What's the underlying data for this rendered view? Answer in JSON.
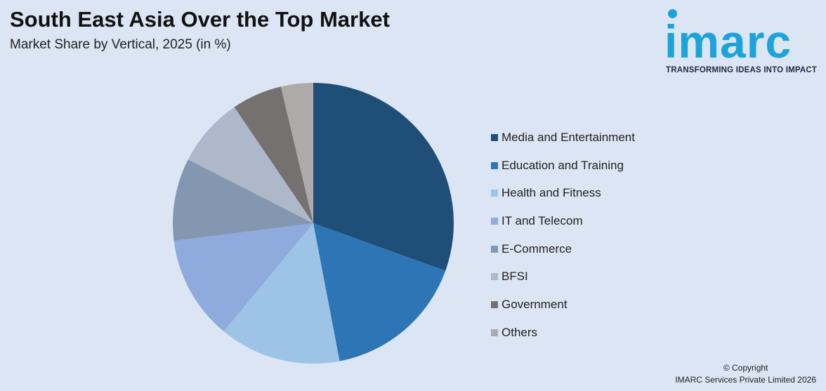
{
  "header": {
    "title": "South East Asia Over the Top Market",
    "subtitle": "Market Share by Vertical, 2025 (in %)"
  },
  "logo": {
    "word": "imarc",
    "tagline": "TRANSFORMING IDEAS INTO IMPACT"
  },
  "footer": {
    "copyright": "© Copyright",
    "company": "IMARC Services Private Limited 2026"
  },
  "chart_data": {
    "type": "pie",
    "title": "South East Asia Over the Top Market",
    "subtitle": "Market Share by Vertical, 2025 (in %)",
    "legend_position": "right",
    "categories": [
      "Media and Entertainment",
      "Education and Training",
      "Health and Fitness",
      "IT and Telecom",
      "E-Commerce",
      "BFSI",
      "Government",
      "Others"
    ],
    "values": [
      30.5,
      16.5,
      14.0,
      12.0,
      9.5,
      8.0,
      5.8,
      3.7
    ],
    "colors": [
      "#1f4e79",
      "#2e75b6",
      "#9dc3e6",
      "#8faadc",
      "#8497b0",
      "#adb9ca",
      "#767171",
      "#aeaaaa"
    ]
  }
}
